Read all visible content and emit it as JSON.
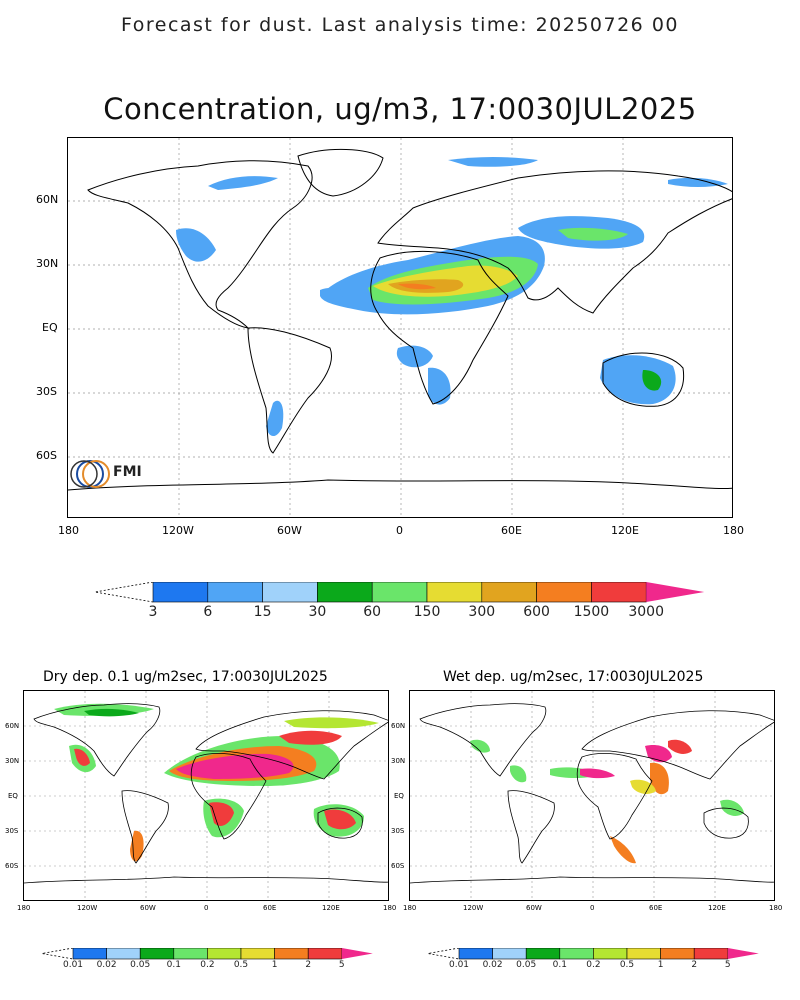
{
  "header": {
    "forecast_line": "Forecast for dust. Last analysis time: 20250726 00"
  },
  "main_map": {
    "title": "Concentration, ug/m3, 17:0030JUL2025",
    "lat_labels": [
      "60N",
      "30N",
      "EQ",
      "30S",
      "60S"
    ],
    "lon_labels": [
      "180",
      "120W",
      "60W",
      "0",
      "60E",
      "120E",
      "180"
    ],
    "logo_text": "FMI",
    "colorbar": {
      "values": [
        "3",
        "6",
        "15",
        "30",
        "60",
        "150",
        "300",
        "600",
        "1500",
        "3000"
      ],
      "colors": [
        "#1e78f0",
        "#50a5f5",
        "#a0d2fa",
        "#0ba91b",
        "#6ae56a",
        "#e6dc32",
        "#e1a41f",
        "#f47e20",
        "#f03c3c",
        "#f0288c"
      ]
    }
  },
  "dry_map": {
    "title": "Dry dep. 0.1 ug/m2sec, 17:0030JUL2025",
    "lat_labels": [
      "60N",
      "30N",
      "EQ",
      "30S",
      "60S"
    ],
    "lon_labels": [
      "180",
      "120W",
      "60W",
      "0",
      "60E",
      "120E",
      "180"
    ],
    "colorbar": {
      "values": [
        "0.01",
        "0.02",
        "0.05",
        "0.1",
        "0.2",
        "0.5",
        "1",
        "2",
        "5"
      ],
      "colors": [
        "#1e78f0",
        "#a0d2fa",
        "#0ba91b",
        "#6ae56a",
        "#b4e632",
        "#e6dc32",
        "#f47e20",
        "#f03c3c",
        "#f0288c"
      ]
    }
  },
  "wet_map": {
    "title": "Wet dep. ug/m2sec, 17:0030JUL2025",
    "lat_labels": [
      "60N",
      "30N",
      "EQ",
      "30S",
      "60S"
    ],
    "lon_labels": [
      "180",
      "120W",
      "60W",
      "0",
      "60E",
      "120E",
      "180"
    ],
    "colorbar": {
      "values": [
        "0.01",
        "0.02",
        "0.05",
        "0.1",
        "0.2",
        "0.5",
        "1",
        "2",
        "5"
      ],
      "colors": [
        "#1e78f0",
        "#a0d2fa",
        "#0ba91b",
        "#6ae56a",
        "#b4e632",
        "#e6dc32",
        "#f47e20",
        "#f03c3c",
        "#f0288c"
      ]
    }
  }
}
